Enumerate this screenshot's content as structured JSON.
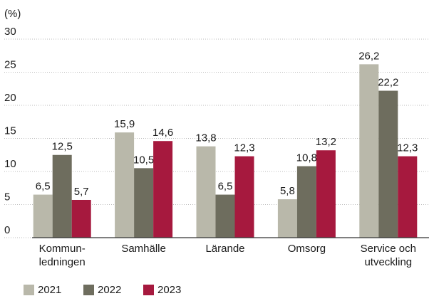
{
  "chart_data": {
    "type": "bar",
    "y_label": "(%)",
    "categories": [
      "Kommun-\nledningen",
      "Samhälle",
      "Lärande",
      "Omsorg",
      "Service och\nutveckling"
    ],
    "series": [
      {
        "name": "2021",
        "color": "#b9b8aa",
        "values": [
          6.5,
          15.9,
          13.8,
          5.8,
          26.2
        ],
        "value_labels": [
          "6,5",
          "15,9",
          "13,8",
          "5,8",
          "26,2"
        ]
      },
      {
        "name": "2022",
        "color": "#6e6d5e",
        "values": [
          12.5,
          10.5,
          6.5,
          10.8,
          22.2
        ],
        "value_labels": [
          "12,5",
          "10,5",
          "6,5",
          "10,8",
          "22,2"
        ]
      },
      {
        "name": "2023",
        "color": "#a6193e",
        "values": [
          5.7,
          14.6,
          12.3,
          13.2,
          12.3
        ],
        "value_labels": [
          "5,7",
          "14,6",
          "12,3",
          "13,2",
          "12,3"
        ]
      }
    ],
    "ylim": [
      0,
      30
    ],
    "yticks": [
      0,
      5,
      10,
      15,
      20,
      25,
      30
    ],
    "grid": true,
    "legend": "bottom-left"
  }
}
